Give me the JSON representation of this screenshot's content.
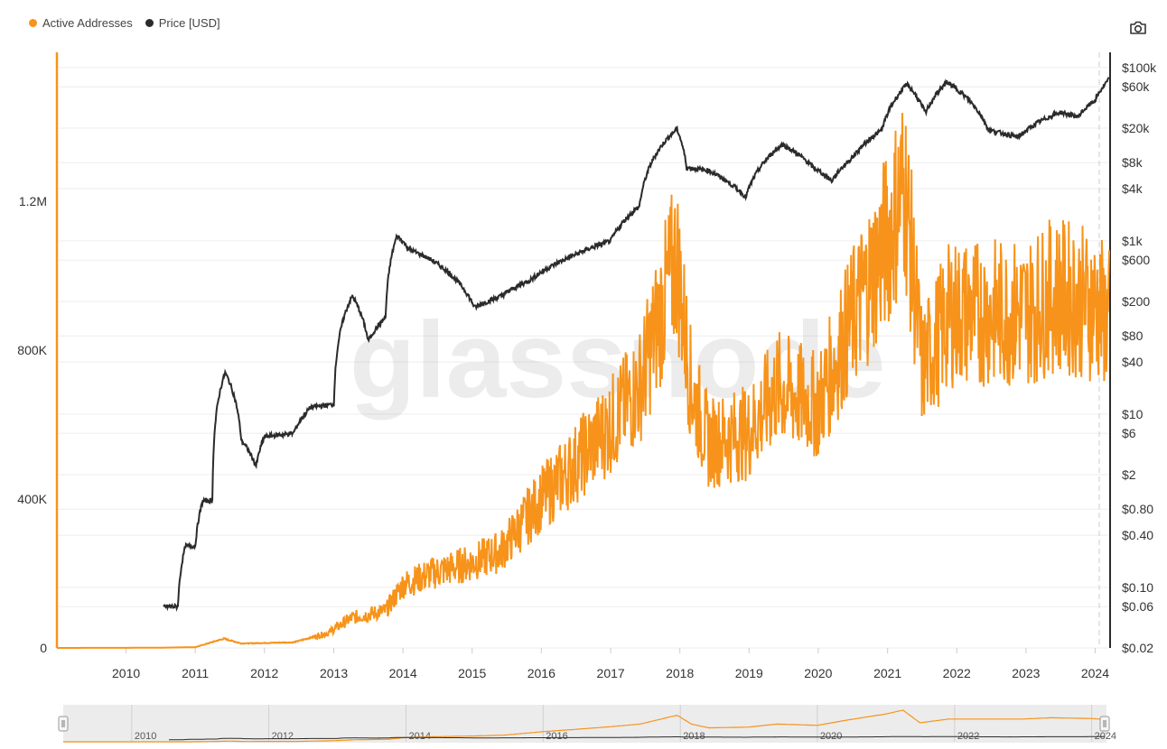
{
  "legend": {
    "series1_label": "Active Addresses",
    "series2_label": "Price [USD]"
  },
  "watermark": "glassnode",
  "icons": {
    "screenshot": "camera-icon"
  },
  "colors": {
    "active": "#f7931a",
    "price": "#2b2b2b",
    "navigator_bg": "#ececec"
  },
  "chart_data": {
    "type": "line",
    "x_axis": {
      "type": "date",
      "range": [
        "2009-01-01",
        "2024-03-20"
      ],
      "ticks": [
        "2010",
        "2011",
        "2012",
        "2013",
        "2014",
        "2015",
        "2016",
        "2017",
        "2018",
        "2019",
        "2020",
        "2021",
        "2022",
        "2023",
        "2024"
      ]
    },
    "y_axis_left": {
      "label": "",
      "range": [
        0,
        1600000
      ],
      "ticks": [
        {
          "v": 0,
          "label": "0"
        },
        {
          "v": 400000,
          "label": "400K"
        },
        {
          "v": 800000,
          "label": "800K"
        },
        {
          "v": 1200000,
          "label": "1.2M"
        }
      ]
    },
    "y_axis_right": {
      "label": "",
      "scale": "log",
      "range": [
        0.02,
        150000
      ],
      "ticks": [
        {
          "v": 100000,
          "label": "$100k"
        },
        {
          "v": 60000,
          "label": "$60k"
        },
        {
          "v": 20000,
          "label": "$20k"
        },
        {
          "v": 8000,
          "label": "$8k"
        },
        {
          "v": 4000,
          "label": "$4k"
        },
        {
          "v": 1000,
          "label": "$1k"
        },
        {
          "v": 600,
          "label": "$600"
        },
        {
          "v": 200,
          "label": "$200"
        },
        {
          "v": 80,
          "label": "$80"
        },
        {
          "v": 40,
          "label": "$40"
        },
        {
          "v": 10,
          "label": "$10"
        },
        {
          "v": 6,
          "label": "$6"
        },
        {
          "v": 2,
          "label": "$2"
        },
        {
          "v": 0.8,
          "label": "$0.80"
        },
        {
          "v": 0.4,
          "label": "$0.40"
        },
        {
          "v": 0.1,
          "label": "$0.10"
        },
        {
          "v": 0.06,
          "label": "$0.06"
        },
        {
          "v": 0.02,
          "label": "$0.02"
        }
      ]
    },
    "navigator_ticks": [
      "2010",
      "2012",
      "2014",
      "2016",
      "2018",
      "2020",
      "2022",
      "2024"
    ],
    "series": [
      {
        "name": "Active Addresses",
        "axis": "left",
        "points": [
          [
            "2009-01-01",
            0
          ],
          [
            "2010-06-01",
            500
          ],
          [
            "2011-01-01",
            2000
          ],
          [
            "2011-06-01",
            25000
          ],
          [
            "2011-09-01",
            12000
          ],
          [
            "2012-06-01",
            15000
          ],
          [
            "2012-12-01",
            40000
          ],
          [
            "2013-04-01",
            80000
          ],
          [
            "2013-10-01",
            100000
          ],
          [
            "2014-01-01",
            170000
          ],
          [
            "2014-06-01",
            200000
          ],
          [
            "2015-01-01",
            230000
          ],
          [
            "2015-06-01",
            260000
          ],
          [
            "2016-01-01",
            400000
          ],
          [
            "2016-06-01",
            480000
          ],
          [
            "2017-01-01",
            600000
          ],
          [
            "2017-06-01",
            700000
          ],
          [
            "2017-12-15",
            1050000
          ],
          [
            "2018-03-01",
            700000
          ],
          [
            "2018-06-01",
            550000
          ],
          [
            "2019-01-01",
            580000
          ],
          [
            "2019-06-01",
            700000
          ],
          [
            "2020-01-01",
            650000
          ],
          [
            "2020-06-01",
            850000
          ],
          [
            "2021-01-01",
            1100000
          ],
          [
            "2021-04-01",
            1250000
          ],
          [
            "2021-07-01",
            750000
          ],
          [
            "2021-12-01",
            900000
          ],
          [
            "2022-06-01",
            900000
          ],
          [
            "2023-01-01",
            900000
          ],
          [
            "2023-06-01",
            950000
          ],
          [
            "2024-01-01",
            920000
          ],
          [
            "2024-03-15",
            880000
          ]
        ]
      },
      {
        "name": "Price [USD]",
        "axis": "right",
        "points": [
          [
            "2010-07-18",
            0.06
          ],
          [
            "2010-10-01",
            0.06
          ],
          [
            "2010-11-10",
            0.3
          ],
          [
            "2011-01-01",
            0.3
          ],
          [
            "2011-02-10",
            1.0
          ],
          [
            "2011-04-01",
            1.0
          ],
          [
            "2011-06-08",
            30
          ],
          [
            "2011-09-01",
            5
          ],
          [
            "2011-11-18",
            2.5
          ],
          [
            "2012-01-01",
            5.5
          ],
          [
            "2012-06-01",
            6
          ],
          [
            "2012-09-01",
            12
          ],
          [
            "2013-01-01",
            13
          ],
          [
            "2013-04-09",
            230
          ],
          [
            "2013-07-01",
            70
          ],
          [
            "2013-10-01",
            130
          ],
          [
            "2013-12-01",
            1150
          ],
          [
            "2014-02-01",
            800
          ],
          [
            "2014-06-01",
            600
          ],
          [
            "2015-01-14",
            170
          ],
          [
            "2015-06-01",
            230
          ],
          [
            "2015-11-01",
            350
          ],
          [
            "2016-06-01",
            650
          ],
          [
            "2017-01-01",
            1000
          ],
          [
            "2017-06-01",
            2500
          ],
          [
            "2017-12-17",
            19500
          ],
          [
            "2018-02-06",
            7000
          ],
          [
            "2018-06-01",
            6500
          ],
          [
            "2018-12-15",
            3200
          ],
          [
            "2019-06-26",
            13000
          ],
          [
            "2019-12-01",
            7200
          ],
          [
            "2020-03-12",
            4900
          ],
          [
            "2020-07-01",
            9200
          ],
          [
            "2020-12-01",
            19000
          ],
          [
            "2021-04-14",
            64000
          ],
          [
            "2021-07-20",
            29800
          ],
          [
            "2021-11-10",
            68000
          ],
          [
            "2022-06-18",
            19000
          ],
          [
            "2022-11-21",
            15700
          ],
          [
            "2023-03-01",
            23000
          ],
          [
            "2023-07-01",
            30500
          ],
          [
            "2023-10-01",
            27000
          ],
          [
            "2024-01-01",
            42000
          ],
          [
            "2024-03-14",
            73000
          ]
        ]
      }
    ]
  }
}
